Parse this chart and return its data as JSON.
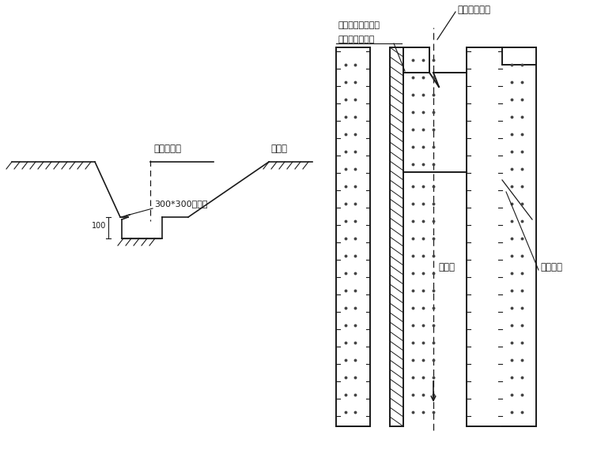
{
  "bg_color": "#ffffff",
  "line_color": "#1a1a1a",
  "text_color": "#1a1a1a",
  "left": {
    "label_centerline": "管道中心线",
    "label_ground": "原地面",
    "label_drain": "300*300排水沟",
    "label_100": "100"
  },
  "right": {
    "label_axis": "管道立面轴线",
    "label_sump1": "集水坑，潜水泵抽",
    "label_sump2": "水排至临近河槽",
    "label_drain": "排水沟",
    "label_slope": "沟槽边坡"
  }
}
